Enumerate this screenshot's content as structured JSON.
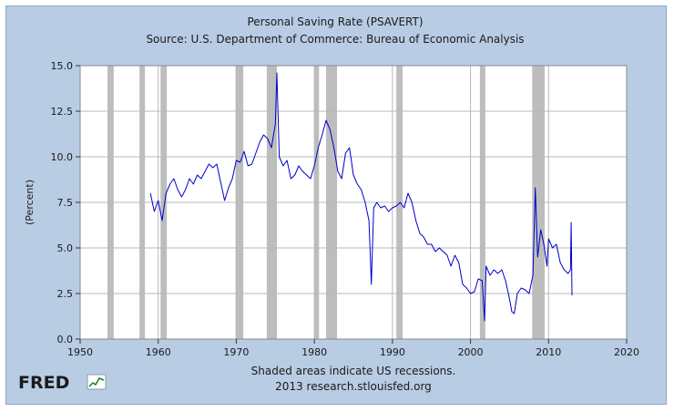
{
  "chart_data": {
    "type": "line",
    "title": "Personal Saving Rate (PSAVERT)",
    "subtitle": "Source: U.S. Department of Commerce: Bureau of Economic Analysis",
    "xlabel": "",
    "ylabel": "(Percent)",
    "xlim": [
      1950,
      2020
    ],
    "ylim": [
      0.0,
      15.0
    ],
    "x_ticks": [
      1950,
      1960,
      1970,
      1980,
      1990,
      2000,
      2010,
      2020
    ],
    "y_ticks": [
      "0.0",
      "2.5",
      "5.0",
      "7.5",
      "10.0",
      "12.5",
      "15.0"
    ],
    "grid": true,
    "line_color": "#0000cc",
    "recession_color": "#bdbdbd",
    "recessions": [
      [
        1953.5,
        1954.3
      ],
      [
        1957.6,
        1958.3
      ],
      [
        1960.3,
        1961.1
      ],
      [
        1969.9,
        1970.9
      ],
      [
        1973.9,
        1975.2
      ],
      [
        1980.0,
        1980.6
      ],
      [
        1981.5,
        1982.9
      ],
      [
        1990.5,
        1991.3
      ],
      [
        2001.2,
        2001.9
      ],
      [
        2007.9,
        2009.5
      ]
    ],
    "series": [
      {
        "x": [
          1959.0,
          1959.5,
          1960.0,
          1960.5,
          1961.0,
          1961.5,
          1962.0,
          1962.5,
          1963.0,
          1963.5,
          1964.0,
          1964.5,
          1965.0,
          1965.5,
          1966.0,
          1966.5,
          1967.0,
          1967.5,
          1968.0,
          1968.5,
          1969.0,
          1969.5,
          1970.0,
          1970.5,
          1971.0,
          1971.5,
          1972.0,
          1972.5,
          1973.0,
          1973.5,
          1974.0,
          1974.5,
          1975.0,
          1975.2,
          1975.5,
          1976.0,
          1976.5,
          1977.0,
          1977.5,
          1978.0,
          1978.5,
          1979.0,
          1979.5,
          1980.0,
          1980.5,
          1981.0,
          1981.5,
          1982.0,
          1982.5,
          1983.0,
          1983.5,
          1984.0,
          1984.5,
          1985.0,
          1985.5,
          1986.0,
          1986.5,
          1987.0,
          1987.3,
          1987.6,
          1988.0,
          1988.5,
          1989.0,
          1989.5,
          1990.0,
          1990.5,
          1991.0,
          1991.5,
          1992.0,
          1992.5,
          1993.0,
          1993.5,
          1994.0,
          1994.5,
          1995.0,
          1995.5,
          1996.0,
          1996.5,
          1997.0,
          1997.5,
          1998.0,
          1998.5,
          1999.0,
          1999.5,
          2000.0,
          2000.5,
          2001.0,
          2001.5,
          2001.8,
          2002.0,
          2002.5,
          2003.0,
          2003.5,
          2004.0,
          2004.5,
          2005.0,
          2005.3,
          2005.6,
          2006.0,
          2006.5,
          2007.0,
          2007.5,
          2008.0,
          2008.3,
          2008.6,
          2009.0,
          2009.4,
          2009.8,
          2010.0,
          2010.5,
          2011.0,
          2011.5,
          2012.0,
          2012.5,
          2012.8,
          2012.9,
          2013.0
        ],
        "values": [
          8.0,
          7.0,
          7.6,
          6.5,
          8.0,
          8.5,
          8.8,
          8.2,
          7.8,
          8.2,
          8.8,
          8.5,
          9.0,
          8.8,
          9.2,
          9.6,
          9.4,
          9.6,
          8.6,
          7.6,
          8.3,
          8.8,
          9.8,
          9.7,
          10.3,
          9.5,
          9.6,
          10.2,
          10.8,
          11.2,
          11.0,
          10.5,
          11.8,
          14.6,
          10.0,
          9.5,
          9.8,
          8.8,
          9.0,
          9.5,
          9.2,
          9.0,
          8.8,
          9.5,
          10.5,
          11.2,
          12.0,
          11.5,
          10.5,
          9.2,
          8.8,
          10.2,
          10.5,
          9.0,
          8.5,
          8.2,
          7.5,
          6.5,
          3.0,
          7.2,
          7.5,
          7.2,
          7.3,
          7.0,
          7.2,
          7.3,
          7.5,
          7.2,
          8.0,
          7.5,
          6.5,
          5.8,
          5.6,
          5.2,
          5.2,
          4.8,
          5.0,
          4.8,
          4.6,
          4.0,
          4.6,
          4.2,
          3.0,
          2.8,
          2.5,
          2.6,
          3.3,
          3.2,
          1.0,
          4.0,
          3.5,
          3.8,
          3.6,
          3.8,
          3.2,
          2.2,
          1.5,
          1.4,
          2.5,
          2.8,
          2.7,
          2.5,
          3.5,
          8.3,
          4.5,
          6.0,
          5.2,
          4.0,
          5.5,
          5.0,
          5.2,
          4.2,
          3.8,
          3.6,
          3.8,
          6.4,
          2.4
        ]
      }
    ]
  },
  "footer": {
    "note": "Shaded areas indicate US recessions.",
    "source_line": "2013 research.stlouisfed.org"
  },
  "logo": {
    "text": "FRED"
  }
}
